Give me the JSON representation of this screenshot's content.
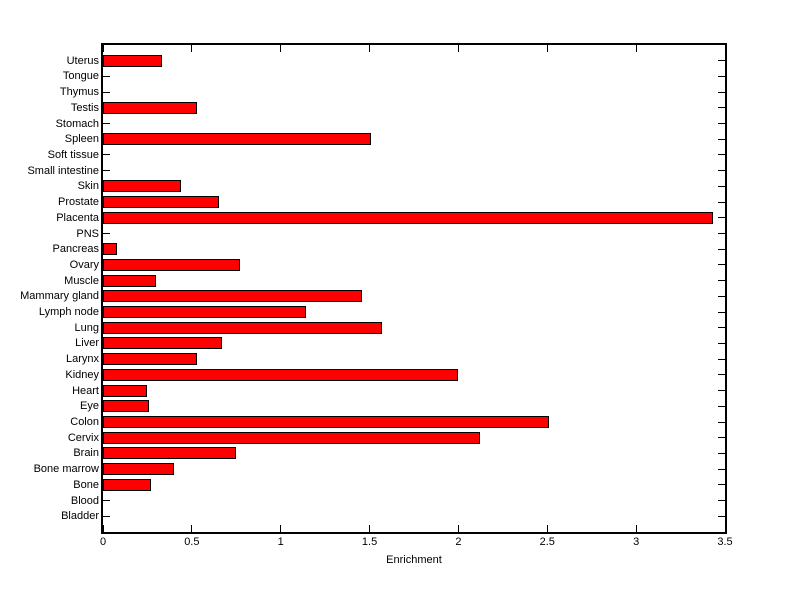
{
  "chart_data": {
    "type": "bar",
    "orientation": "horizontal",
    "title": "",
    "xlabel": "Enrichment",
    "ylabel": "",
    "categories": [
      "Uterus",
      "Tongue",
      "Thymus",
      "Testis",
      "Stomach",
      "Spleen",
      "Soft tissue",
      "Small intestine",
      "Skin",
      "Prostate",
      "Placenta",
      "PNS",
      "Pancreas",
      "Ovary",
      "Muscle",
      "Mammary gland",
      "Lymph node",
      "Lung",
      "Liver",
      "Larynx",
      "Kidney",
      "Heart",
      "Eye",
      "Colon",
      "Cervix",
      "Brain",
      "Bone marrow",
      "Bone",
      "Blood",
      "Bladder"
    ],
    "values": [
      0.33,
      0,
      0,
      0.53,
      0,
      1.51,
      0,
      0,
      0.44,
      0.65,
      3.43,
      0,
      0.08,
      0.77,
      0.3,
      1.46,
      1.14,
      1.57,
      0.67,
      0.53,
      2.0,
      0.25,
      0.26,
      2.51,
      2.12,
      0.75,
      0.4,
      0.27,
      0,
      0
    ],
    "xlim": [
      0,
      3.5
    ],
    "xticks": [
      0,
      0.5,
      1,
      1.5,
      2,
      2.5,
      3,
      3.5
    ],
    "xtick_labels": [
      "0",
      "0.5",
      "1",
      "1.5",
      "2",
      "2.5",
      "3",
      "3.5"
    ],
    "bar_color": "#ff0000",
    "bar_edge_color": "#000000",
    "axis_color": "#000000",
    "background_color": "#ffffff",
    "grid": false,
    "legend": null
  }
}
